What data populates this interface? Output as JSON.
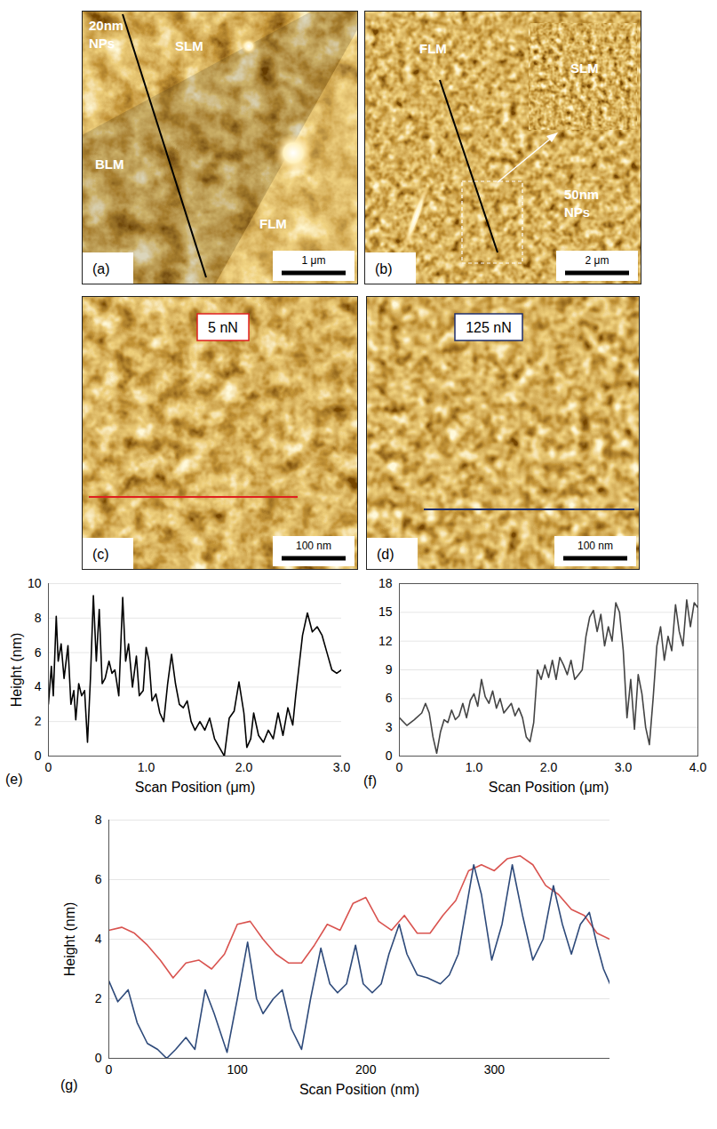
{
  "images": [
    {
      "panel": "(a)",
      "annotation": [
        "20nm",
        "NPs"
      ],
      "labels": [
        "SLM",
        "BLM",
        "FLM"
      ],
      "scale_bar": "1 μm",
      "line_color": "#000000"
    },
    {
      "panel": "(b)",
      "annotation": [
        "50nm",
        "NPs"
      ],
      "labels": [
        "FLM"
      ],
      "inset_label": "SLM",
      "scale_bar": "2 μm",
      "line_color": "#000000"
    },
    {
      "panel": "(c)",
      "force_label": "5 nN",
      "force_color": "#e02020",
      "scale_bar": "100 nm",
      "line_color": "#e02020"
    },
    {
      "panel": "(d)",
      "force_label": "125 nN",
      "force_color": "#1f2f6e",
      "scale_bar": "100 nm",
      "line_color": "#1f2f6e"
    }
  ],
  "chart_data": [
    {
      "type": "line",
      "panel": "(e)",
      "x_label": "Scan Position (μm)",
      "y_label": "Height (nm)",
      "xlim": [
        0,
        3
      ],
      "xticks": [
        0,
        {
          "value": 1,
          "label": "1.0"
        },
        {
          "value": 2,
          "label": "2.0"
        },
        {
          "value": 3,
          "label": "3.0"
        }
      ],
      "ylim": [
        0,
        10
      ],
      "yticks": [
        0,
        2,
        4,
        6,
        8,
        10
      ],
      "grid": true,
      "x": [
        0,
        0.03,
        0.05,
        0.08,
        0.1,
        0.13,
        0.16,
        0.2,
        0.23,
        0.26,
        0.28,
        0.31,
        0.34,
        0.37,
        0.4,
        0.43,
        0.46,
        0.49,
        0.52,
        0.55,
        0.58,
        0.62,
        0.65,
        0.68,
        0.72,
        0.76,
        0.79,
        0.82,
        0.86,
        0.9,
        0.93,
        0.97,
        1.0,
        1.03,
        1.06,
        1.1,
        1.14,
        1.18,
        1.22,
        1.26,
        1.3,
        1.34,
        1.38,
        1.42,
        1.46,
        1.5,
        1.55,
        1.6,
        1.65,
        1.7,
        1.75,
        1.8,
        1.85,
        1.9,
        1.95,
        2.0,
        2.03,
        2.07,
        2.1,
        2.15,
        2.2,
        2.25,
        2.3,
        2.35,
        2.4,
        2.45,
        2.5,
        2.53,
        2.56,
        2.6,
        2.65,
        2.7,
        2.75,
        2.8,
        2.85,
        2.9,
        2.95,
        3.0
      ],
      "series": [
        {
          "color": "#000000",
          "values": [
            3,
            5.2,
            3.5,
            8.1,
            5.5,
            6.5,
            4.5,
            6.4,
            3.0,
            3.8,
            2.1,
            4.2,
            3.5,
            3.8,
            0.8,
            4.5,
            9.3,
            5.5,
            8.5,
            4.2,
            4.5,
            5.5,
            4.8,
            5.0,
            3.5,
            9.2,
            5.5,
            6.5,
            4.0,
            5.8,
            3.5,
            3.8,
            6.3,
            5.5,
            3.2,
            3.6,
            2.5,
            2.0,
            4.2,
            5.9,
            4.2,
            3.0,
            2.8,
            3.2,
            2.0,
            1.5,
            2.0,
            1.5,
            2.2,
            1.0,
            0.5,
            0,
            2.2,
            2.6,
            4.3,
            2.5,
            0.5,
            1.0,
            2.5,
            1.2,
            0.8,
            1.5,
            1.0,
            2.5,
            1.2,
            2.8,
            1.8,
            3.5,
            5.0,
            7.0,
            8.3,
            7.2,
            7.5,
            7.0,
            6.0,
            5.0,
            4.8,
            5.0
          ]
        }
      ]
    },
    {
      "type": "line",
      "panel": "(f)",
      "x_label": "Scan Position (μm)",
      "xlim": [
        0,
        4
      ],
      "xticks": [
        0,
        {
          "value": 1,
          "label": "1.0"
        },
        {
          "value": 2,
          "label": "2.0"
        },
        {
          "value": 3,
          "label": "3.0"
        },
        {
          "value": 4,
          "label": "4.0"
        }
      ],
      "ylim": [
        0,
        18
      ],
      "yticks": [
        0,
        3,
        6,
        9,
        12,
        15,
        18
      ],
      "grid": true,
      "x": [
        0,
        0.1,
        0.2,
        0.3,
        0.35,
        0.4,
        0.45,
        0.5,
        0.55,
        0.6,
        0.65,
        0.7,
        0.75,
        0.8,
        0.85,
        0.9,
        0.95,
        1.0,
        1.05,
        1.1,
        1.15,
        1.2,
        1.25,
        1.3,
        1.35,
        1.4,
        1.5,
        1.55,
        1.6,
        1.65,
        1.7,
        1.75,
        1.8,
        1.85,
        1.9,
        1.95,
        2.0,
        2.05,
        2.1,
        2.15,
        2.2,
        2.25,
        2.3,
        2.35,
        2.4,
        2.45,
        2.5,
        2.55,
        2.6,
        2.65,
        2.7,
        2.75,
        2.8,
        2.85,
        2.9,
        2.95,
        3.0,
        3.05,
        3.1,
        3.15,
        3.2,
        3.25,
        3.3,
        3.35,
        3.4,
        3.45,
        3.5,
        3.55,
        3.6,
        3.65,
        3.7,
        3.75,
        3.8,
        3.85,
        3.9,
        3.95,
        4.0
      ],
      "series": [
        {
          "color": "#444444",
          "values": [
            4,
            3.2,
            3.8,
            4.5,
            5.5,
            4.5,
            2,
            0.3,
            2.5,
            3.8,
            3.5,
            4.8,
            3.8,
            4.2,
            5.5,
            4.0,
            5.8,
            6.5,
            5.2,
            8.0,
            6.2,
            5.5,
            6.8,
            5.0,
            6.0,
            4.5,
            5.5,
            4.2,
            5.0,
            4.0,
            2.0,
            1.5,
            3.5,
            9.0,
            8.0,
            9.5,
            8.2,
            10.0,
            8.0,
            10.3,
            9.5,
            8.5,
            10.0,
            8.0,
            8.5,
            9.0,
            12.5,
            14.5,
            15.2,
            13.0,
            14.8,
            11.5,
            13.5,
            12.0,
            16.0,
            15.0,
            11.0,
            4.0,
            8.0,
            2.8,
            8.5,
            6.5,
            3.0,
            1.2,
            6.0,
            11.5,
            13.5,
            10.0,
            12.5,
            11.0,
            15.8,
            13.0,
            11.5,
            16.3,
            13.5,
            16.0,
            15.5
          ]
        }
      ]
    },
    {
      "type": "line",
      "panel": "(g)",
      "x_label": "Scan Position (nm)",
      "y_label": "Height (nm)",
      "xlim": [
        0,
        390
      ],
      "xticks": [
        0,
        100,
        200,
        300
      ],
      "ylim": [
        0,
        8
      ],
      "yticks": [
        0,
        2,
        4,
        6,
        8
      ],
      "grid": true,
      "series": [
        {
          "color": "#d9534f",
          "x": [
            0,
            10,
            20,
            30,
            40,
            50,
            60,
            70,
            80,
            90,
            100,
            110,
            120,
            130,
            140,
            150,
            160,
            170,
            180,
            190,
            200,
            210,
            220,
            230,
            240,
            250,
            260,
            270,
            280,
            290,
            300,
            310,
            320,
            330,
            340,
            350,
            360,
            370,
            380,
            390
          ],
          "values": [
            4.3,
            4.4,
            4.2,
            3.8,
            3.3,
            2.7,
            3.2,
            3.3,
            3.0,
            3.5,
            4.5,
            4.6,
            4.0,
            3.5,
            3.2,
            3.2,
            3.8,
            4.5,
            4.3,
            5.2,
            5.4,
            4.6,
            4.3,
            4.8,
            4.2,
            4.2,
            4.8,
            5.3,
            6.3,
            6.5,
            6.3,
            6.7,
            6.8,
            6.5,
            5.8,
            5.5,
            5.0,
            4.8,
            4.2,
            4.0
          ]
        },
        {
          "color": "#2e4a7a",
          "x": [
            0,
            7,
            15,
            22,
            30,
            38,
            45,
            52,
            60,
            67,
            75,
            82,
            92,
            100,
            108,
            115,
            120,
            128,
            135,
            142,
            150,
            157,
            165,
            172,
            178,
            185,
            192,
            198,
            205,
            212,
            218,
            226,
            232,
            240,
            248,
            258,
            265,
            272,
            278,
            284,
            290,
            298,
            306,
            314,
            322,
            330,
            338,
            346,
            353,
            360,
            367,
            374,
            380,
            385,
            390
          ],
          "values": [
            2.6,
            1.9,
            2.3,
            1.2,
            0.5,
            0.3,
            0,
            0.3,
            0.7,
            0.3,
            2.3,
            1.5,
            0.2,
            2.0,
            3.9,
            2.0,
            1.5,
            2.0,
            2.3,
            1.0,
            0.3,
            2.0,
            3.7,
            2.5,
            2.2,
            2.5,
            3.8,
            2.5,
            2.2,
            2.5,
            3.5,
            4.5,
            3.5,
            2.8,
            2.7,
            2.5,
            2.8,
            3.5,
            5.0,
            6.5,
            5.5,
            3.3,
            4.5,
            6.5,
            4.8,
            3.3,
            4.0,
            5.8,
            4.5,
            3.5,
            4.5,
            4.9,
            3.8,
            3.0,
            2.5
          ]
        }
      ]
    }
  ]
}
